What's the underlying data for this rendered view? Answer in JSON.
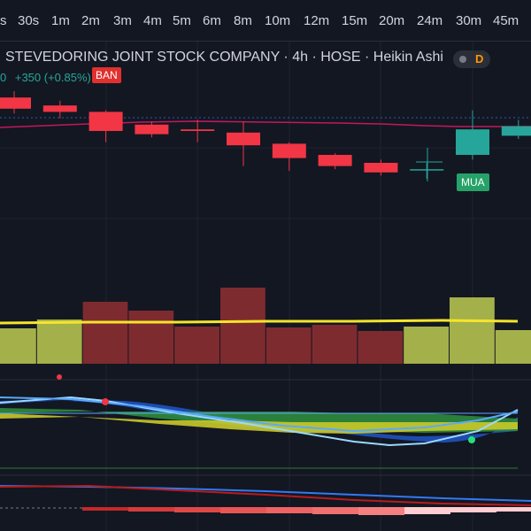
{
  "toolbar": {
    "intervals": [
      "s",
      "30s",
      "1m",
      "2m",
      "3m",
      "4m",
      "5m",
      "6m",
      "8m",
      "10m",
      "12m",
      "15m",
      "20m",
      "24m",
      "30m",
      "45m"
    ]
  },
  "header": {
    "symbol_title": "STEVEDORING JOINT STOCK COMPANY · 4h · HOSE · Heikin Ashi",
    "change_prefix": "0",
    "change_text": "+350 (+0.85%)",
    "badge_letter": "D"
  },
  "signals": {
    "sell_label": "BAN",
    "buy_label": "MUA"
  },
  "colors": {
    "background": "#131722",
    "up": "#26a69a",
    "down": "#f23645",
    "volume_up": "#a4b04a",
    "volume_down": "#7e2b2f",
    "volume_ma": "#f5e52a"
  },
  "chart_data": {
    "type": "candlestick",
    "candles": [
      {
        "open": 0.76,
        "close": 0.69,
        "high": 0.8,
        "low": 0.66
      },
      {
        "open": 0.71,
        "close": 0.67,
        "high": 0.74,
        "low": 0.63
      },
      {
        "open": 0.67,
        "close": 0.55,
        "high": 0.68,
        "low": 0.48
      },
      {
        "open": 0.59,
        "close": 0.53,
        "high": 0.61,
        "low": 0.51
      },
      {
        "open": 0.56,
        "close": 0.55,
        "high": 0.62,
        "low": 0.48
      },
      {
        "open": 0.54,
        "close": 0.46,
        "high": 0.61,
        "low": 0.33
      },
      {
        "open": 0.47,
        "close": 0.38,
        "high": 0.48,
        "low": 0.3
      },
      {
        "open": 0.4,
        "close": 0.33,
        "high": 0.41,
        "low": 0.31
      },
      {
        "open": 0.35,
        "close": 0.29,
        "high": 0.37,
        "low": 0.27
      },
      {
        "open": 0.31,
        "close": 0.31,
        "high": 0.35,
        "low": 0.25
      },
      {
        "open": 0.4,
        "close": 0.56,
        "high": 0.68,
        "low": 0.37
      },
      {
        "open": 0.52,
        "close": 0.58,
        "high": 0.62,
        "low": 0.5
      }
    ],
    "volume": [
      0.4,
      0.5,
      0.7,
      0.6,
      0.42,
      0.86,
      0.41,
      0.44,
      0.37,
      0.42,
      0.75,
      0.38
    ],
    "volume_colors": [
      "up",
      "up",
      "down",
      "down",
      "down",
      "down",
      "down",
      "down",
      "down",
      "up",
      "up",
      "up"
    ]
  }
}
